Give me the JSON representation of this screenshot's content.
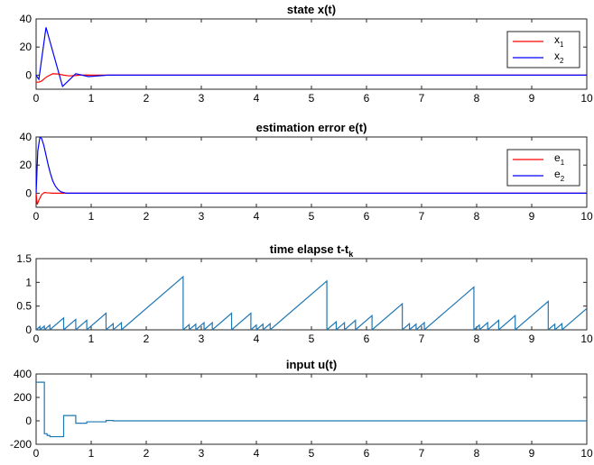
{
  "chart_data": [
    {
      "type": "line",
      "title": "state x(t)",
      "xlim": [
        0,
        10
      ],
      "ylim": [
        -10,
        40
      ],
      "xticks": [
        "0",
        "1",
        "2",
        "3",
        "4",
        "5",
        "6",
        "7",
        "8",
        "9",
        "10"
      ],
      "yticks": [
        {
          "v": 0,
          "label": "0"
        },
        {
          "v": 20,
          "label": "20"
        },
        {
          "v": 40,
          "label": "40"
        }
      ],
      "legend": "top-right",
      "series": [
        {
          "name": "x",
          "sub": "1",
          "color": "#ff0000",
          "x": [
            0,
            0.05,
            0.1,
            0.15,
            0.2,
            0.3,
            0.4,
            0.5,
            0.6,
            0.7,
            0.8,
            0.9,
            1.0,
            1.2,
            1.5,
            2.0,
            10
          ],
          "y": [
            -5,
            -5,
            -4.2,
            -2.5,
            -1,
            1,
            0.8,
            0,
            -0.5,
            -0.3,
            0,
            0.1,
            0,
            0,
            0,
            0,
            0
          ]
        },
        {
          "name": "x",
          "sub": "2",
          "color": "#0000ff",
          "x": [
            0,
            0.05,
            0.18,
            0.48,
            0.72,
            0.95,
            1.3,
            2.0,
            10
          ],
          "y": [
            0,
            -3,
            34,
            -8,
            1,
            -1,
            0,
            0,
            0
          ]
        }
      ]
    },
    {
      "type": "line",
      "title": "estimation error e(t)",
      "xlim": [
        0,
        10
      ],
      "ylim": [
        -10,
        40
      ],
      "xticks": [
        "0",
        "1",
        "2",
        "3",
        "4",
        "5",
        "6",
        "7",
        "8",
        "9",
        "10"
      ],
      "yticks": [
        {
          "v": 0,
          "label": "0"
        },
        {
          "v": 20,
          "label": "20"
        },
        {
          "v": 40,
          "label": "40"
        }
      ],
      "legend": "top-right",
      "series": [
        {
          "name": "e",
          "sub": "1",
          "color": "#ff0000",
          "x": [
            0,
            0.02,
            0.05,
            0.1,
            0.15,
            0.2,
            0.3,
            10
          ],
          "y": [
            0,
            -8,
            -5,
            -1,
            0.5,
            0.3,
            0,
            0
          ]
        },
        {
          "name": "e",
          "sub": "2",
          "color": "#0000ff",
          "x": [
            0,
            0.03,
            0.07,
            0.1,
            0.14,
            0.18,
            0.22,
            0.26,
            0.3,
            0.35,
            0.4,
            0.45,
            0.55,
            0.7,
            10
          ],
          "y": [
            0,
            30,
            40,
            39,
            34,
            27,
            20,
            14,
            9,
            5,
            2.5,
            1,
            0,
            0,
            0
          ]
        }
      ]
    },
    {
      "type": "line",
      "title": "time elapse t-t",
      "title_sub": "k",
      "xlim": [
        0,
        10
      ],
      "ylim": [
        0,
        1.5
      ],
      "xticks": [
        "0",
        "1",
        "2",
        "3",
        "4",
        "5",
        "6",
        "7",
        "8",
        "9",
        "10"
      ],
      "yticks": [
        {
          "v": 0,
          "label": "0"
        },
        {
          "v": 0.5,
          "label": "0.5"
        },
        {
          "v": 1,
          "label": "1"
        },
        {
          "v": 1.5,
          "label": "1.5"
        }
      ],
      "series": [
        {
          "name": "",
          "color": "#1f77b4",
          "resets": [
            [
              0,
              0.07
            ],
            [
              0.07,
              0.15
            ],
            [
              0.15,
              0.25
            ],
            [
              0.25,
              0.5
            ],
            [
              0.5,
              0.72
            ],
            [
              0.72,
              0.92
            ],
            [
              0.92,
              1.27
            ],
            [
              1.27,
              1.4
            ],
            [
              1.4,
              1.55
            ],
            [
              1.55,
              2.67
            ],
            [
              2.67,
              2.78
            ],
            [
              2.78,
              2.9
            ],
            [
              2.9,
              3.05
            ],
            [
              3.05,
              3.2
            ],
            [
              3.2,
              3.55
            ],
            [
              3.55,
              3.9
            ],
            [
              3.9,
              4.0
            ],
            [
              4.0,
              4.12
            ],
            [
              4.12,
              4.25
            ],
            [
              4.25,
              5.28
            ],
            [
              5.28,
              5.45
            ],
            [
              5.45,
              5.6
            ],
            [
              5.6,
              5.8
            ],
            [
              5.8,
              6.1
            ],
            [
              6.1,
              6.65
            ],
            [
              6.65,
              6.78
            ],
            [
              6.78,
              6.9
            ],
            [
              6.9,
              7.05
            ],
            [
              7.05,
              7.95
            ],
            [
              7.95,
              8.05
            ],
            [
              8.05,
              8.2
            ],
            [
              8.2,
              8.4
            ],
            [
              8.4,
              8.7
            ],
            [
              8.7,
              9.3
            ],
            [
              9.3,
              9.42
            ],
            [
              9.42,
              9.55
            ],
            [
              9.55,
              10.0
            ]
          ]
        }
      ]
    },
    {
      "type": "line",
      "title": "input u(t)",
      "xlim": [
        0,
        10
      ],
      "ylim": [
        -200,
        400
      ],
      "xticks": [
        "0",
        "1",
        "2",
        "3",
        "4",
        "5",
        "6",
        "7",
        "8",
        "9",
        "10"
      ],
      "yticks": [
        {
          "v": -200,
          "label": "-200"
        },
        {
          "v": 0,
          "label": "0"
        },
        {
          "v": 200,
          "label": "200"
        },
        {
          "v": 400,
          "label": "400"
        }
      ],
      "series": [
        {
          "name": "",
          "color": "#1f77b4",
          "x": [
            0,
            0.15,
            0.15,
            0.2,
            0.2,
            0.25,
            0.25,
            0.5,
            0.5,
            0.72,
            0.72,
            0.92,
            0.92,
            1.27,
            1.27,
            1.4,
            1.4,
            10
          ],
          "y": [
            330,
            330,
            -110,
            -110,
            -125,
            -125,
            -135,
            -135,
            45,
            45,
            -20,
            -20,
            -8,
            -8,
            3,
            3,
            0,
            0
          ]
        }
      ]
    }
  ]
}
